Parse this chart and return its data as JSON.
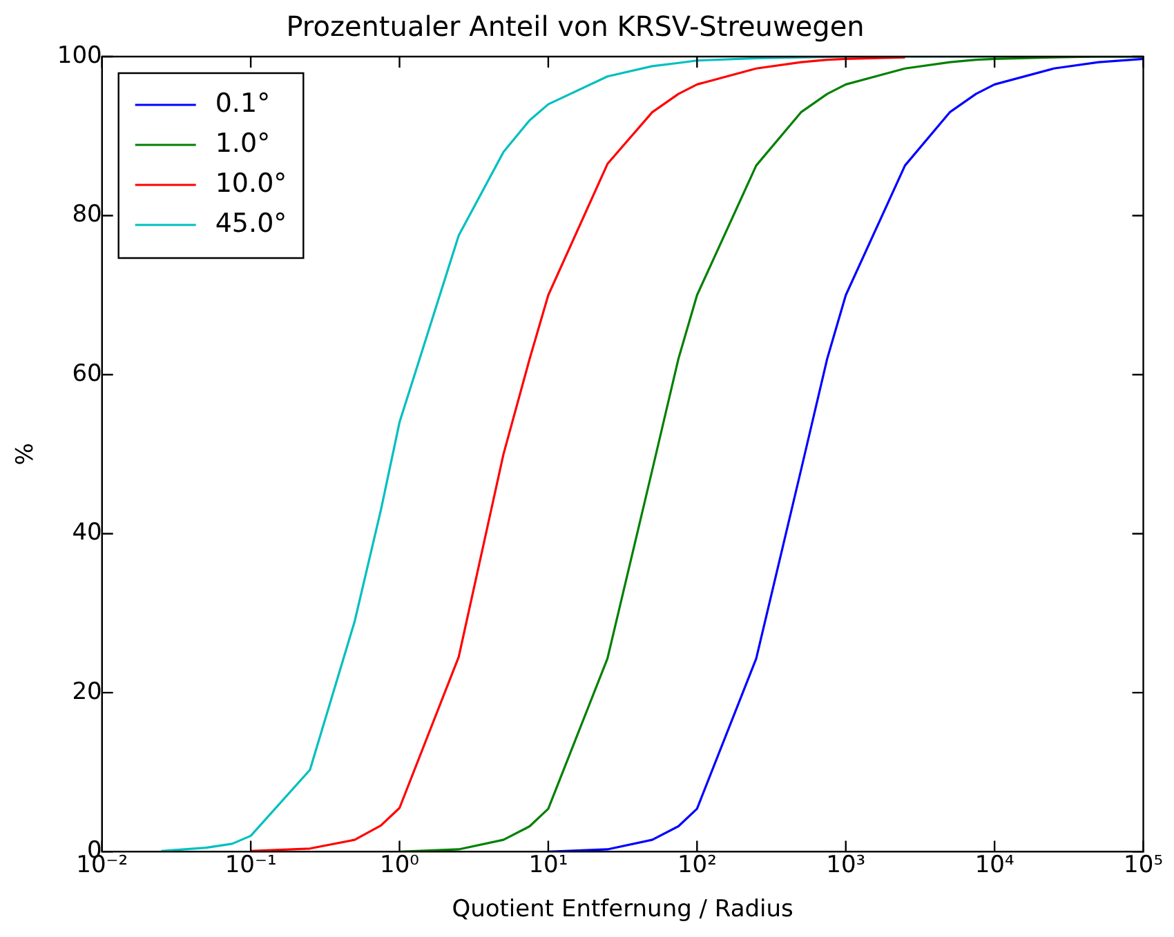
{
  "chart_data": {
    "type": "line",
    "title": "Prozentualer Anteil von KRSV-Streuwegen",
    "xlabel": "Quotient Entfernung / Radius",
    "ylabel": "%",
    "log": "x",
    "grid": false,
    "legend": "top left",
    "marker": "none",
    "line_style": "solid",
    "xlim": [
      0.01,
      100000
    ],
    "xticks": [
      {
        "value": 0.01,
        "label": "10⁻²"
      },
      {
        "value": 0.1,
        "label": "10⁻¹"
      },
      {
        "value": 1,
        "label": "10⁰"
      },
      {
        "value": 10,
        "label": "10¹"
      },
      {
        "value": 100,
        "label": "10²"
      },
      {
        "value": 1000,
        "label": "10³"
      },
      {
        "value": 10000,
        "label": "10⁴"
      },
      {
        "value": 100000,
        "label": "10⁵"
      }
    ],
    "ylim": [
      0,
      100
    ],
    "yticks": [
      0,
      20,
      40,
      60,
      80,
      100
    ],
    "series": [
      {
        "name": "0.1°",
        "color": "#0000ff",
        "x": [
          10,
          25,
          50,
          75,
          100,
          250,
          500,
          750,
          1000,
          2500,
          5000,
          7500,
          10000,
          25000,
          50000,
          100000
        ],
        "values": [
          0,
          0.3,
          1.5,
          3.2,
          5.4,
          24.3,
          48,
          62,
          70,
          86.3,
          93,
          95.3,
          96.5,
          98.5,
          99.3,
          99.7
        ]
      },
      {
        "name": "1.0°",
        "color": "#008000",
        "x": [
          1,
          2.5,
          5,
          7.5,
          10,
          25,
          50,
          75,
          100,
          250,
          500,
          750,
          1000,
          2500,
          5000,
          7500,
          10000,
          25000,
          50000,
          100000
        ],
        "values": [
          0,
          0.3,
          1.5,
          3.2,
          5.4,
          24.3,
          48,
          62,
          70,
          86.3,
          93,
          95.3,
          96.5,
          98.5,
          99.3,
          99.6,
          99.7,
          99.9,
          100,
          100
        ]
      },
      {
        "name": "10.0°",
        "color": "#ff0000",
        "x": [
          0.1,
          0.25,
          0.5,
          0.75,
          1,
          2.5,
          5,
          7.5,
          10,
          25,
          50,
          75,
          100,
          250,
          500,
          750,
          1000,
          2500
        ],
        "values": [
          0.1,
          0.4,
          1.5,
          3.3,
          5.5,
          24.5,
          50,
          62,
          70,
          86.5,
          93,
          95.3,
          96.5,
          98.5,
          99.3,
          99.6,
          99.7,
          99.9
        ]
      },
      {
        "name": "45.0°",
        "color": "#00bfbf",
        "x": [
          0.025,
          0.03,
          0.05,
          0.075,
          0.1,
          0.25,
          0.5,
          0.75,
          1,
          2.5,
          5,
          7.5,
          10,
          25,
          50,
          75,
          100,
          250,
          500,
          1000,
          10000,
          100000
        ],
        "values": [
          0.1,
          0.2,
          0.5,
          1,
          2,
          10.3,
          29,
          43,
          54,
          77.5,
          88,
          92,
          94,
          97.5,
          98.8,
          99.2,
          99.5,
          99.8,
          99.9,
          100,
          100,
          100
        ]
      }
    ]
  }
}
